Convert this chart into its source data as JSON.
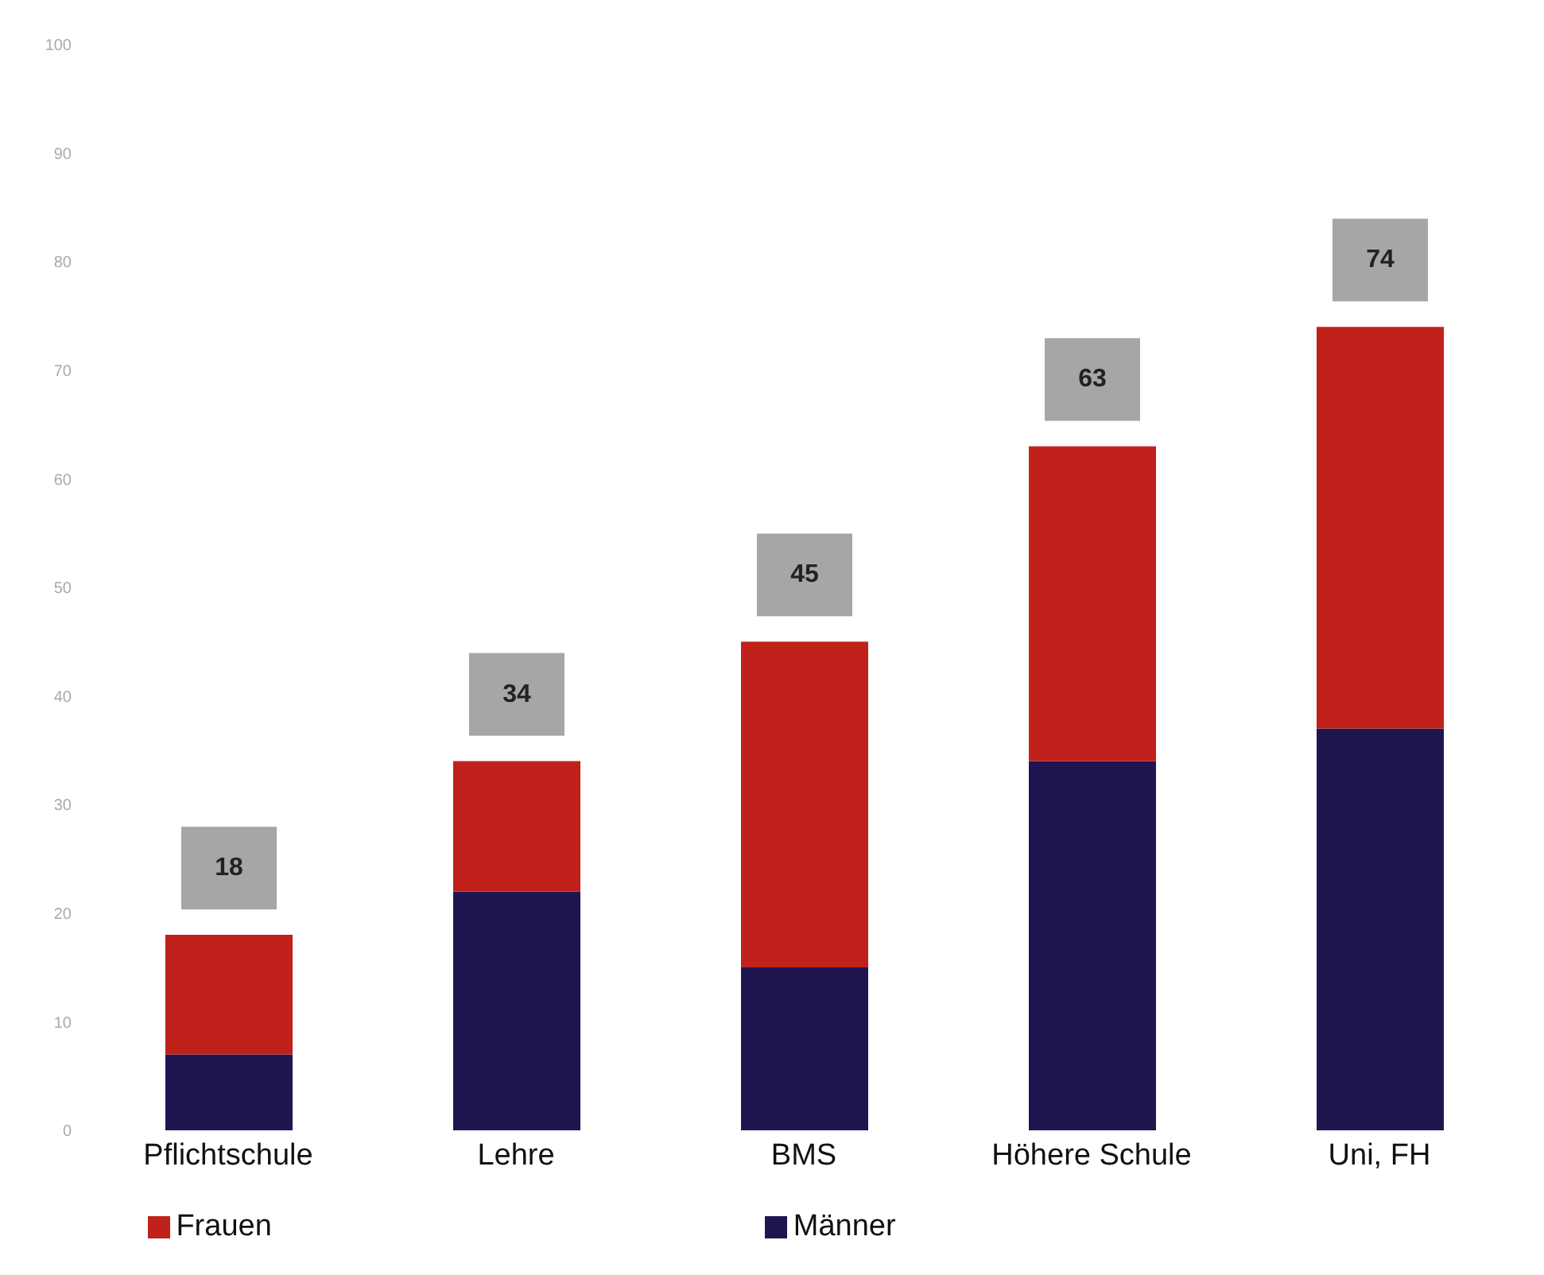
{
  "chart_data": {
    "type": "bar",
    "stacked": true,
    "categories": [
      "Pflichtschule",
      "Lehre",
      "BMS",
      "Höhere Schule",
      "Uni, FH"
    ],
    "series": [
      {
        "name": "Männer",
        "color": "#1f1650",
        "values": [
          7,
          22,
          15,
          34,
          37
        ]
      },
      {
        "name": "Frauen",
        "color": "#c0211a",
        "values": [
          11,
          12,
          30,
          29,
          37
        ]
      }
    ],
    "totals": [
      "18",
      "34",
      "45",
      "63",
      "74"
    ],
    "ylim": [
      0,
      100
    ],
    "yticks": [
      0,
      10,
      20,
      30,
      40,
      50,
      60,
      70,
      80,
      90,
      100
    ],
    "grid": false,
    "legend": "bottom"
  }
}
